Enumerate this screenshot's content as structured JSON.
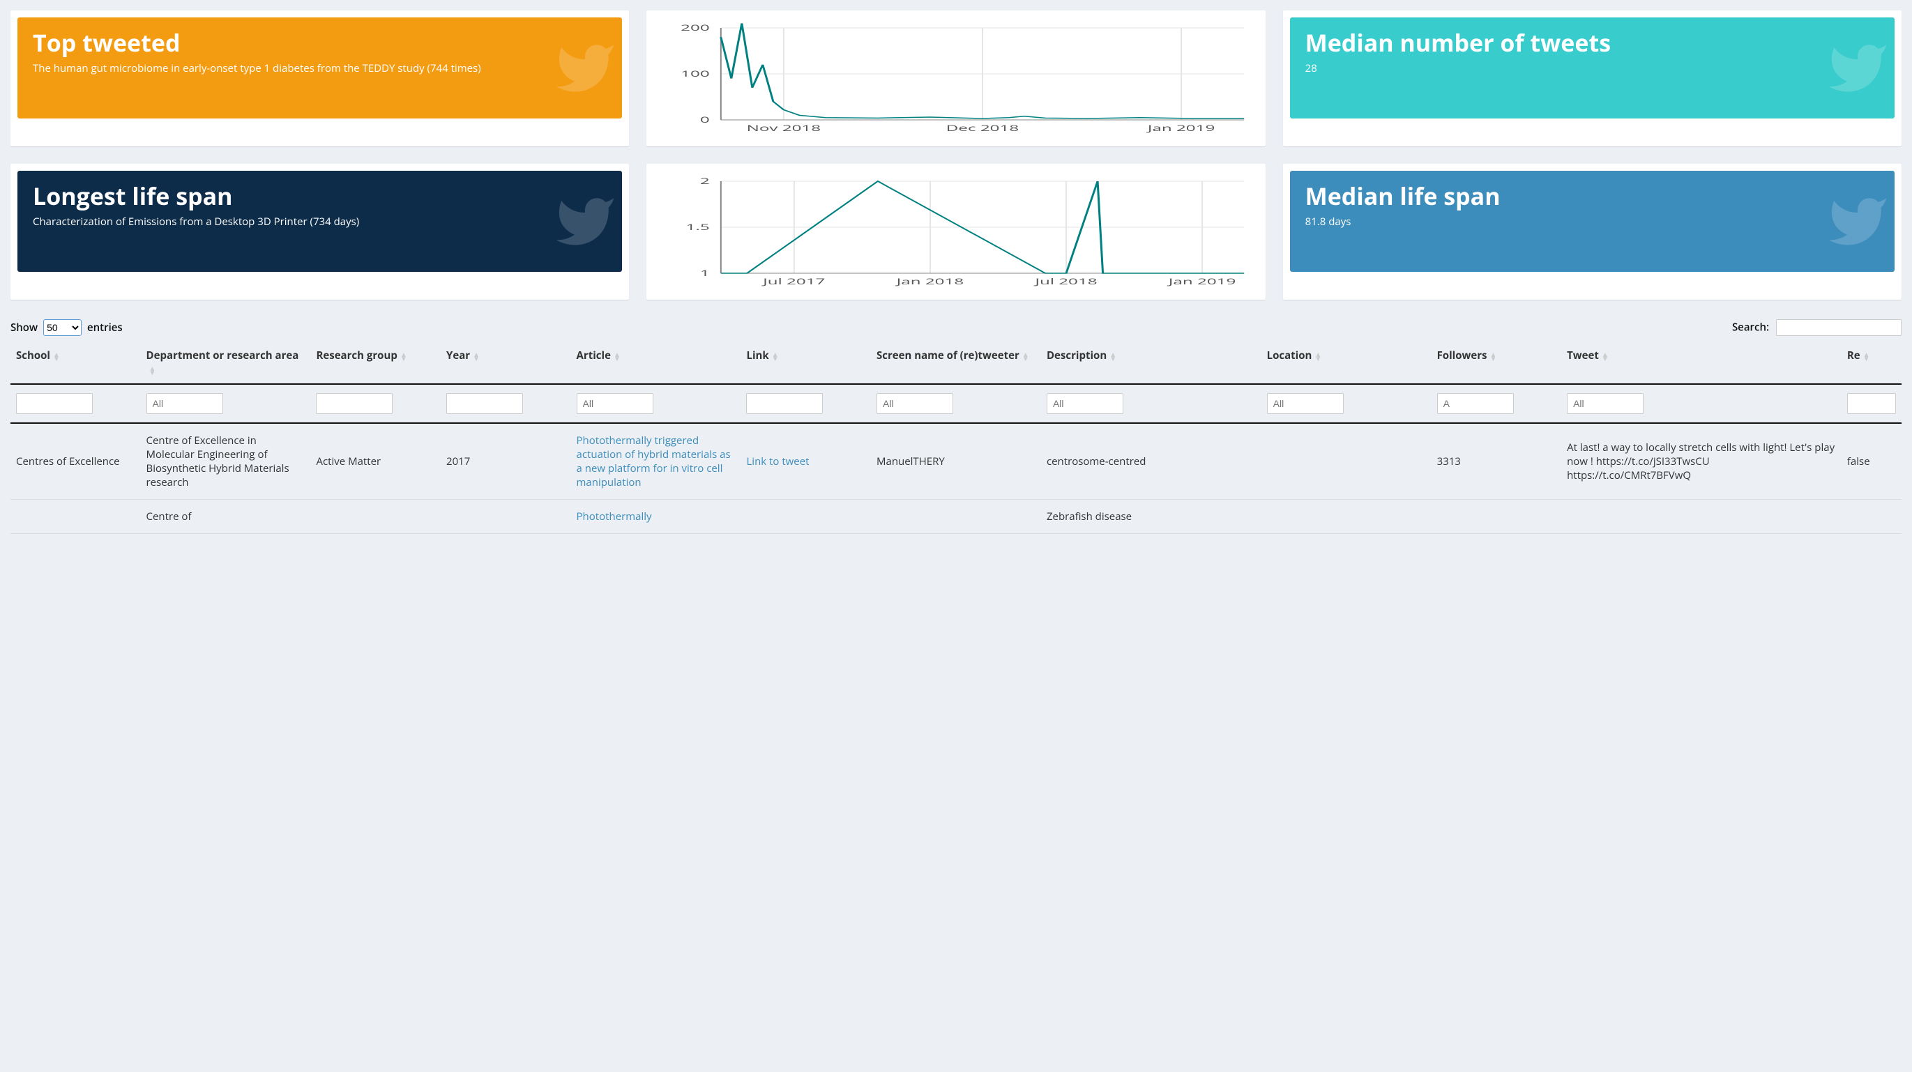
{
  "layout": {
    "background_color": "#ecf0f5",
    "card_background": "#ffffff"
  },
  "cards": {
    "top_tweeted": {
      "title": "Top tweeted",
      "subtitle": "The human gut microbiome in early-onset type 1 diabetes from the TEDDY study (744 times)",
      "background_color": "#f39c12",
      "text_color": "#ffffff"
    },
    "longest_lifespan": {
      "title": "Longest life span",
      "subtitle": "Characterization of Emissions from a Desktop 3D Printer (734 days)",
      "background_color": "#0d2c4a",
      "text_color": "#ffffff"
    },
    "median_tweets": {
      "title": "Median number of tweets",
      "subtitle": "28",
      "background_color": "#39cccc",
      "text_color": "#ffffff"
    },
    "median_lifespan": {
      "title": "Median life span",
      "subtitle": "81.8 days",
      "background_color": "#3c8dbc",
      "text_color": "#ffffff"
    }
  },
  "chart1": {
    "type": "line",
    "ylim": [
      0,
      200
    ],
    "yticks": [
      0,
      100,
      200
    ],
    "xlabels": [
      "Nov 2018",
      "Dec 2018",
      "Jan 2019"
    ],
    "xlim": [
      0,
      1
    ],
    "xtick_positions": [
      0.12,
      0.5,
      0.88
    ],
    "series_color": "#008080",
    "grid_color": "#e5e5e5",
    "axis_color": "#888888",
    "points": [
      [
        0.0,
        180
      ],
      [
        0.02,
        90
      ],
      [
        0.04,
        210
      ],
      [
        0.06,
        70
      ],
      [
        0.08,
        120
      ],
      [
        0.1,
        40
      ],
      [
        0.12,
        22
      ],
      [
        0.15,
        10
      ],
      [
        0.2,
        5
      ],
      [
        0.3,
        4
      ],
      [
        0.4,
        6
      ],
      [
        0.5,
        3
      ],
      [
        0.55,
        5
      ],
      [
        0.58,
        8
      ],
      [
        0.62,
        4
      ],
      [
        0.7,
        3
      ],
      [
        0.8,
        5
      ],
      [
        0.9,
        3
      ],
      [
        1.0,
        3
      ]
    ]
  },
  "chart2": {
    "type": "line",
    "ylim": [
      1,
      2
    ],
    "yticks": [
      1,
      1.5,
      2
    ],
    "xlabels": [
      "Jul 2017",
      "Jan 2018",
      "Jul 2018",
      "Jan 2019"
    ],
    "xlim": [
      0,
      1
    ],
    "xtick_positions": [
      0.14,
      0.4,
      0.66,
      0.92
    ],
    "series_color": "#008080",
    "grid_color": "#e5e5e5",
    "axis_color": "#888888",
    "points": [
      [
        0.0,
        1.0
      ],
      [
        0.05,
        1.0
      ],
      [
        0.3,
        2.0
      ],
      [
        0.62,
        1.0
      ],
      [
        0.66,
        1.0
      ],
      [
        0.72,
        2.0
      ],
      [
        0.73,
        1.0
      ],
      [
        1.0,
        1.0
      ]
    ]
  },
  "table": {
    "show_label_before": "Show",
    "show_label_after": "entries",
    "show_value": "50",
    "search_label": "Search:",
    "search_value": "",
    "columns": [
      {
        "key": "school",
        "label": "School",
        "filter_ph": ""
      },
      {
        "key": "dept",
        "label": "Department or research area",
        "filter_ph": "All"
      },
      {
        "key": "group",
        "label": "Research group",
        "filter_ph": ""
      },
      {
        "key": "year",
        "label": "Year",
        "filter_ph": ""
      },
      {
        "key": "article",
        "label": "Article",
        "filter_ph": "All"
      },
      {
        "key": "link",
        "label": "Link",
        "filter_ph": ""
      },
      {
        "key": "screen",
        "label": "Screen name of (re)tweeter",
        "filter_ph": "All"
      },
      {
        "key": "desc",
        "label": "Description",
        "filter_ph": "All"
      },
      {
        "key": "loc",
        "label": "Location",
        "filter_ph": "All"
      },
      {
        "key": "followers",
        "label": "Followers",
        "filter_ph": "A"
      },
      {
        "key": "tweet",
        "label": "Tweet",
        "filter_ph": "All"
      },
      {
        "key": "re",
        "label": "Re",
        "filter_ph": ""
      }
    ],
    "rows": [
      {
        "school": "Centres of Excellence",
        "dept": "Centre of Excellence in Molecular Engineering of Biosynthetic Hybrid Materials research",
        "group": "Active Matter",
        "year": "2017",
        "article": "Photothermally triggered actuation of hybrid materials as a new platform for in vitro cell manipulation",
        "link": "Link to tweet",
        "screen": "ManuelTHERY",
        "desc": "centrosome-centred",
        "loc": "",
        "followers": "3313",
        "tweet": "At last! a way to locally stretch cells with light! Let's play now ! https://t.co/jSI33TwsCU https://t.co/CMRt7BFVwQ",
        "re": "false"
      },
      {
        "school": "",
        "dept": "Centre of",
        "group": "",
        "year": "",
        "article": "Photothermally",
        "link": "",
        "screen": "",
        "desc": "Zebrafish disease",
        "loc": "",
        "followers": "",
        "tweet": "",
        "re": ""
      }
    ]
  }
}
